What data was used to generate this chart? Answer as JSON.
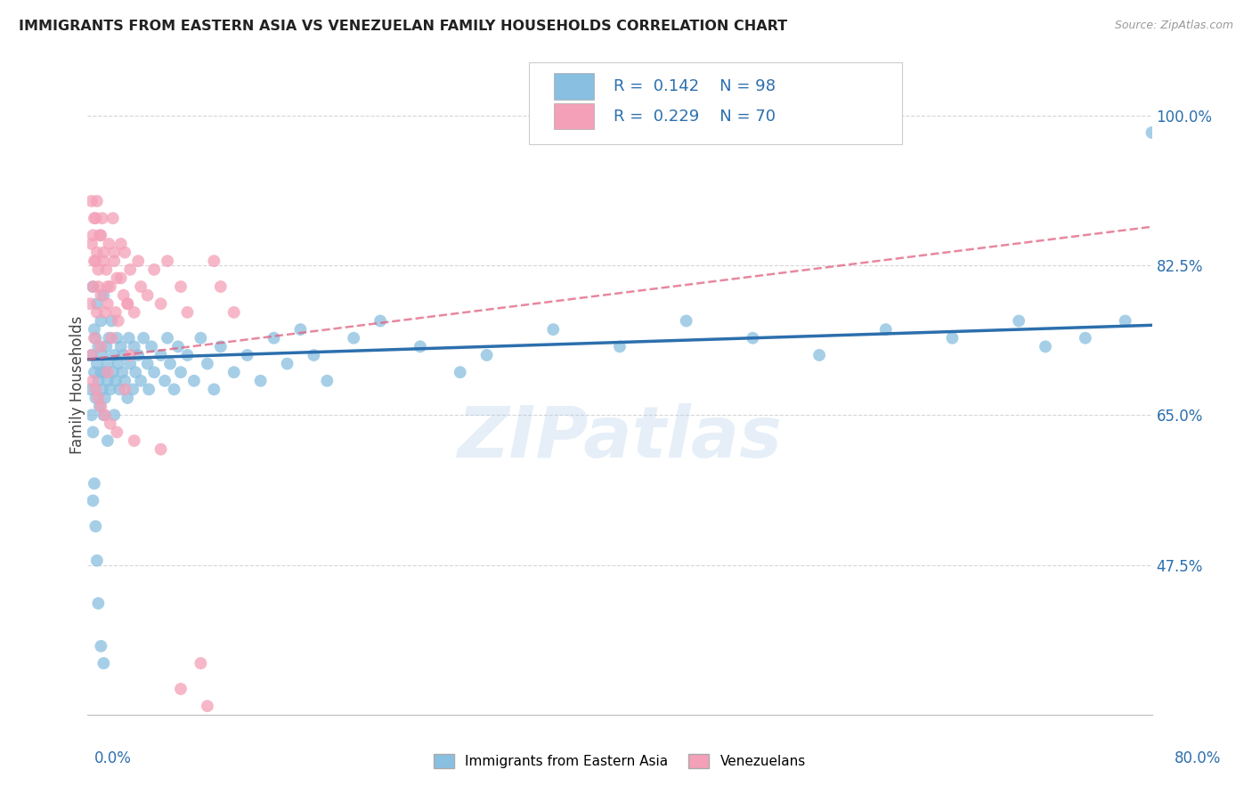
{
  "title": "IMMIGRANTS FROM EASTERN ASIA VS VENEZUELAN FAMILY HOUSEHOLDS CORRELATION CHART",
  "source": "Source: ZipAtlas.com",
  "ylabel": "Family Households",
  "ytick_vals": [
    47.5,
    65.0,
    82.5,
    100.0
  ],
  "xmin": 0.0,
  "xmax": 80.0,
  "ymin": 30.0,
  "ymax": 107.0,
  "blue_R": 0.142,
  "blue_N": 98,
  "pink_R": 0.229,
  "pink_N": 70,
  "blue_color": "#89bfe0",
  "pink_color": "#f4a0b8",
  "blue_line_color": "#2c6fad",
  "pink_line_color": "#e06080",
  "legend_label_blue": "Immigrants from Eastern Asia",
  "legend_label_pink": "Venezuelans",
  "watermark": "ZIPatlas",
  "blue_line_x0": 0.0,
  "blue_line_y0": 71.5,
  "blue_line_x1": 80.0,
  "blue_line_y1": 75.5,
  "pink_line_x0": 0.0,
  "pink_line_y0": 71.5,
  "pink_line_x1": 80.0,
  "pink_line_y1": 87.0,
  "blue_scatter_x": [
    0.2,
    0.3,
    0.3,
    0.4,
    0.4,
    0.5,
    0.5,
    0.6,
    0.6,
    0.7,
    0.7,
    0.8,
    0.8,
    0.9,
    1.0,
    1.0,
    1.1,
    1.1,
    1.2,
    1.2,
    1.3,
    1.3,
    1.4,
    1.5,
    1.5,
    1.6,
    1.7,
    1.8,
    1.9,
    2.0,
    2.0,
    2.1,
    2.2,
    2.3,
    2.4,
    2.5,
    2.6,
    2.7,
    2.8,
    3.0,
    3.1,
    3.2,
    3.4,
    3.5,
    3.6,
    3.8,
    4.0,
    4.2,
    4.5,
    4.6,
    4.8,
    5.0,
    5.5,
    5.8,
    6.0,
    6.2,
    6.5,
    6.8,
    7.0,
    7.5,
    8.0,
    8.5,
    9.0,
    9.5,
    10.0,
    11.0,
    12.0,
    13.0,
    14.0,
    15.0,
    16.0,
    17.0,
    18.0,
    20.0,
    22.0,
    25.0,
    28.0,
    30.0,
    35.0,
    40.0,
    45.0,
    50.0,
    55.0,
    60.0,
    65.0,
    70.0,
    72.0,
    75.0,
    78.0,
    80.0,
    0.4,
    0.5,
    0.6,
    0.7,
    0.8,
    1.0,
    1.2,
    1.5
  ],
  "blue_scatter_y": [
    68.0,
    72.0,
    65.0,
    80.0,
    63.0,
    70.0,
    75.0,
    67.0,
    74.0,
    71.0,
    78.0,
    69.0,
    73.0,
    66.0,
    70.0,
    76.0,
    68.0,
    72.0,
    65.0,
    79.0,
    70.0,
    67.0,
    73.0,
    71.0,
    69.0,
    74.0,
    68.0,
    76.0,
    70.0,
    72.0,
    65.0,
    69.0,
    74.0,
    71.0,
    68.0,
    73.0,
    70.0,
    72.0,
    69.0,
    67.0,
    74.0,
    71.0,
    68.0,
    73.0,
    70.0,
    72.0,
    69.0,
    74.0,
    71.0,
    68.0,
    73.0,
    70.0,
    72.0,
    69.0,
    74.0,
    71.0,
    68.0,
    73.0,
    70.0,
    72.0,
    69.0,
    74.0,
    71.0,
    68.0,
    73.0,
    70.0,
    72.0,
    69.0,
    74.0,
    71.0,
    75.0,
    72.0,
    69.0,
    74.0,
    76.0,
    73.0,
    70.0,
    72.0,
    75.0,
    73.0,
    76.0,
    74.0,
    72.0,
    75.0,
    74.0,
    76.0,
    73.0,
    74.0,
    76.0,
    98.0,
    55.0,
    57.0,
    52.0,
    48.0,
    43.0,
    38.0,
    36.0,
    62.0
  ],
  "pink_scatter_x": [
    0.2,
    0.3,
    0.3,
    0.4,
    0.5,
    0.5,
    0.6,
    0.7,
    0.7,
    0.8,
    0.9,
    1.0,
    1.0,
    1.1,
    1.2,
    1.3,
    1.4,
    1.5,
    1.6,
    1.7,
    1.8,
    1.9,
    2.0,
    2.1,
    2.2,
    2.3,
    2.5,
    2.7,
    2.8,
    3.0,
    3.2,
    3.5,
    3.8,
    4.0,
    4.5,
    5.0,
    5.5,
    6.0,
    7.0,
    7.5,
    8.5,
    9.5,
    10.0,
    11.0,
    0.3,
    0.4,
    0.5,
    0.6,
    0.7,
    0.8,
    1.0,
    1.2,
    1.5,
    2.0,
    2.5,
    3.0,
    0.4,
    0.6,
    0.8,
    1.0,
    1.3,
    1.7,
    2.2,
    3.5,
    5.5,
    7.0,
    9.0,
    3.2,
    1.5,
    2.8
  ],
  "pink_scatter_y": [
    78.0,
    85.0,
    72.0,
    80.0,
    88.0,
    74.0,
    83.0,
    77.0,
    90.0,
    82.0,
    86.0,
    79.0,
    73.0,
    88.0,
    84.0,
    77.0,
    82.0,
    78.0,
    85.0,
    80.0,
    74.0,
    88.0,
    83.0,
    77.0,
    81.0,
    76.0,
    85.0,
    79.0,
    84.0,
    78.0,
    82.0,
    77.0,
    83.0,
    80.0,
    79.0,
    82.0,
    78.0,
    83.0,
    80.0,
    77.0,
    36.0,
    83.0,
    80.0,
    77.0,
    90.0,
    86.0,
    83.0,
    88.0,
    84.0,
    80.0,
    86.0,
    83.0,
    80.0,
    84.0,
    81.0,
    78.0,
    69.0,
    68.0,
    67.0,
    66.0,
    65.0,
    64.0,
    63.0,
    62.0,
    61.0,
    33.0,
    31.0,
    72.0,
    70.0,
    68.0
  ]
}
